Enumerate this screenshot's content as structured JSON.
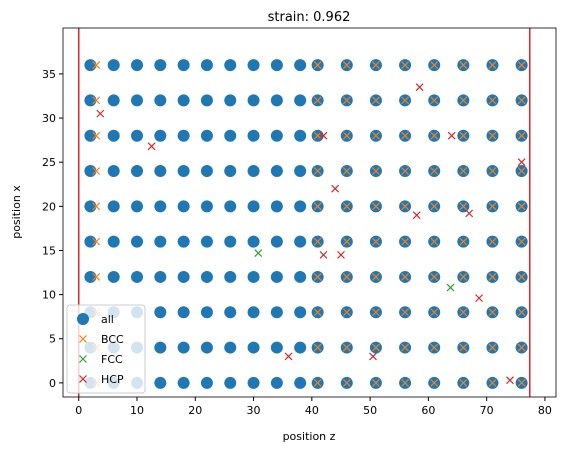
{
  "chart_data": {
    "type": "scatter",
    "title": "strain: 0.962",
    "xlabel": "position z",
    "ylabel": "position x",
    "xlim": [
      -2.7,
      81.9
    ],
    "ylim": [
      -1.6,
      40.2
    ],
    "xticks": [
      0,
      10,
      20,
      30,
      40,
      50,
      60,
      70,
      80
    ],
    "yticks": [
      0,
      5,
      10,
      15,
      20,
      25,
      30,
      35
    ],
    "vlines": [
      0,
      77.4
    ],
    "vline_color": "#d62728",
    "legend": "lower left",
    "series": [
      {
        "name": "all",
        "marker": "o",
        "color": "#1f77b4",
        "x": [
          2,
          6,
          10,
          14,
          18,
          22,
          26,
          30,
          34,
          38,
          41,
          46,
          51,
          56,
          61,
          66,
          71,
          76,
          2,
          6,
          10,
          14,
          18,
          22,
          26,
          30,
          34,
          38,
          41,
          46,
          51,
          56,
          61,
          66,
          71,
          76,
          2,
          6,
          10,
          14,
          18,
          22,
          26,
          30,
          34,
          38,
          41,
          46,
          51,
          56,
          61,
          66,
          71,
          76,
          2,
          6,
          10,
          14,
          18,
          22,
          26,
          30,
          34,
          38,
          41,
          46,
          51,
          56,
          61,
          66,
          71,
          76,
          2,
          6,
          10,
          14,
          18,
          22,
          26,
          30,
          34,
          38,
          41,
          46,
          51,
          56,
          61,
          66,
          71,
          76,
          2,
          6,
          10,
          14,
          18,
          22,
          26,
          30,
          34,
          38,
          41,
          46,
          51,
          56,
          61,
          66,
          71,
          76,
          2,
          6,
          10,
          14,
          18,
          22,
          26,
          30,
          34,
          38,
          41,
          46,
          51,
          56,
          61,
          66,
          71,
          76,
          2,
          6,
          10,
          14,
          18,
          22,
          26,
          30,
          34,
          38,
          41,
          46,
          51,
          56,
          61,
          66,
          71,
          76,
          2,
          6,
          10,
          14,
          18,
          22,
          26,
          30,
          34,
          38,
          41,
          46,
          51,
          56,
          61,
          66,
          71,
          76,
          2,
          6,
          10,
          14,
          18,
          22,
          26,
          30,
          34,
          38,
          41,
          46,
          51,
          56,
          61,
          66,
          71,
          76
        ],
        "values": [
          0,
          0,
          0,
          0,
          0,
          0,
          0,
          0,
          0,
          0,
          0,
          0,
          0,
          0,
          0,
          0,
          0,
          0,
          4,
          4,
          4,
          4,
          4,
          4,
          4,
          4,
          4,
          4,
          4,
          4,
          4,
          4,
          4,
          4,
          4,
          4,
          8,
          8,
          8,
          8,
          8,
          8,
          8,
          8,
          8,
          8,
          8,
          8,
          8,
          8,
          8,
          8,
          8,
          8,
          12,
          12,
          12,
          12,
          12,
          12,
          12,
          12,
          12,
          12,
          12,
          12,
          12,
          12,
          12,
          12,
          12,
          12,
          16,
          16,
          16,
          16,
          16,
          16,
          16,
          16,
          16,
          16,
          16,
          16,
          16,
          16,
          16,
          16,
          16,
          16,
          20,
          20,
          20,
          20,
          20,
          20,
          20,
          20,
          20,
          20,
          20,
          20,
          20,
          20,
          20,
          20,
          20,
          20,
          24,
          24,
          24,
          24,
          24,
          24,
          24,
          24,
          24,
          24,
          24,
          24,
          24,
          24,
          24,
          24,
          24,
          24,
          28,
          28,
          28,
          28,
          28,
          28,
          28,
          28,
          28,
          28,
          28,
          28,
          28,
          28,
          28,
          28,
          28,
          28,
          32,
          32,
          32,
          32,
          32,
          32,
          32,
          32,
          32,
          32,
          32,
          32,
          32,
          32,
          32,
          32,
          32,
          32,
          36,
          36,
          36,
          36,
          36,
          36,
          36,
          36,
          36,
          36,
          36,
          36,
          36,
          36,
          36,
          36,
          36,
          36
        ]
      },
      {
        "name": "BCC",
        "marker": "x",
        "color": "#ff7f0e",
        "x": [
          3,
          41,
          46,
          51,
          56,
          61,
          66,
          71,
          76,
          3,
          41,
          46,
          51,
          56,
          61,
          66,
          71,
          76,
          3,
          41,
          46,
          51,
          56,
          61,
          66,
          71,
          76,
          3,
          41,
          46,
          51,
          56,
          61,
          66,
          71,
          76,
          3,
          41,
          46,
          51,
          56,
          61,
          66,
          71,
          76,
          3,
          41,
          46,
          51,
          56,
          61,
          66,
          71,
          76,
          3,
          41,
          46,
          51,
          56,
          61,
          66,
          71,
          76,
          3,
          41,
          46,
          51,
          56,
          61,
          66,
          71,
          76,
          3,
          41,
          46,
          51,
          56,
          61,
          66,
          71,
          76,
          3,
          41,
          46,
          51,
          56,
          61,
          66,
          71,
          76
        ],
        "values": [
          0,
          0,
          0,
          0,
          0,
          0,
          0,
          0,
          0,
          4,
          4,
          4,
          4,
          4,
          4,
          4,
          4,
          4,
          8,
          8,
          8,
          8,
          8,
          8,
          8,
          8,
          8,
          12,
          12,
          12,
          12,
          12,
          12,
          12,
          12,
          12,
          16,
          16,
          16,
          16,
          16,
          16,
          16,
          16,
          16,
          20,
          20,
          20,
          20,
          20,
          20,
          20,
          20,
          20,
          24,
          24,
          24,
          24,
          24,
          24,
          24,
          24,
          24,
          28,
          28,
          28,
          28,
          28,
          28,
          28,
          28,
          28,
          32,
          32,
          32,
          32,
          32,
          32,
          32,
          32,
          32,
          36,
          36,
          36,
          36,
          36,
          36,
          36,
          36,
          36
        ]
      },
      {
        "name": "FCC",
        "marker": "x",
        "color": "#2ca02c",
        "x": [
          30.8,
          63.8
        ],
        "values": [
          14.7,
          10.8
        ]
      },
      {
        "name": "HCP",
        "marker": "x",
        "color": "#d62728",
        "x": [
          12.5,
          36,
          42,
          44,
          58.5,
          64,
          67,
          68.7,
          74,
          76,
          50.5,
          3.7,
          58,
          45,
          42
        ],
        "values": [
          26.8,
          3,
          28,
          22,
          33.5,
          28,
          19.2,
          9.6,
          0.3,
          25,
          3,
          30.5,
          19,
          14.5,
          14.5
        ]
      }
    ]
  }
}
